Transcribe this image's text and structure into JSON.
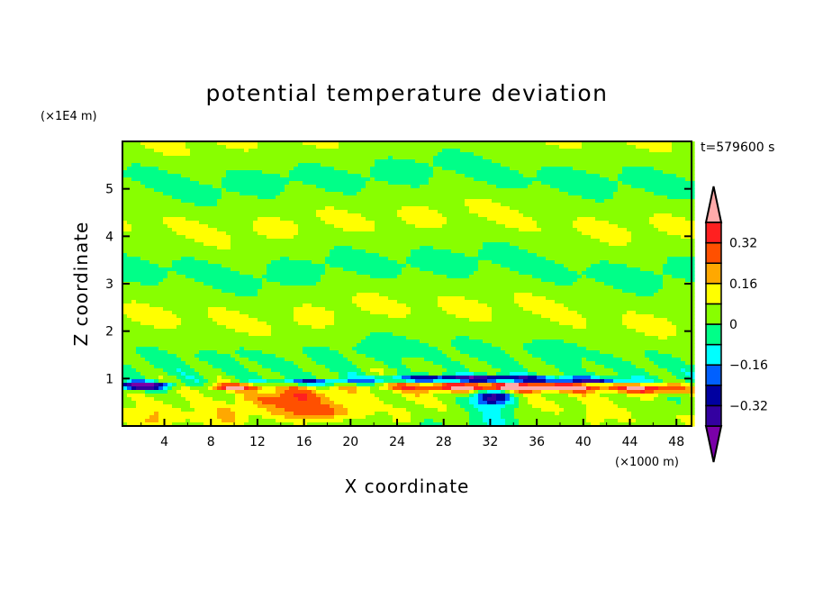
{
  "chart_data": {
    "type": "heatmap",
    "title": "potential temperature deviation",
    "xlabel": "X coordinate",
    "ylabel": "Z coordinate",
    "x_unit": "(×1000 m)",
    "y_unit": "(×1E4 m)",
    "annotation": "t=579600 s",
    "xlim": [
      0.4,
      49.3
    ],
    "ylim": [
      0,
      6
    ],
    "x_ticks": [
      4,
      8,
      12,
      16,
      20,
      24,
      28,
      32,
      36,
      40,
      44,
      48
    ],
    "y_ticks": [
      1,
      2,
      3,
      4,
      5
    ],
    "colorbar": {
      "levels": [
        -0.4,
        -0.32,
        -0.24,
        -0.16,
        -0.08,
        0,
        0.08,
        0.16,
        0.24,
        0.32,
        0.4
      ],
      "tick_labels": [
        "0.32",
        "0.16",
        "0",
        "−0.16",
        "−0.32"
      ],
      "tick_values": [
        0.32,
        0.16,
        0,
        -0.16,
        -0.32
      ],
      "colors": [
        "#7a00a8",
        "#3300a0",
        "#0000a0",
        "#0060ff",
        "#00ffff",
        "#00ff88",
        "#88ff00",
        "#ffff00",
        "#ffa800",
        "#ff5000",
        "#ff2020",
        "#ffaaaa"
      ],
      "extend": "both",
      "placement": "right"
    }
  }
}
